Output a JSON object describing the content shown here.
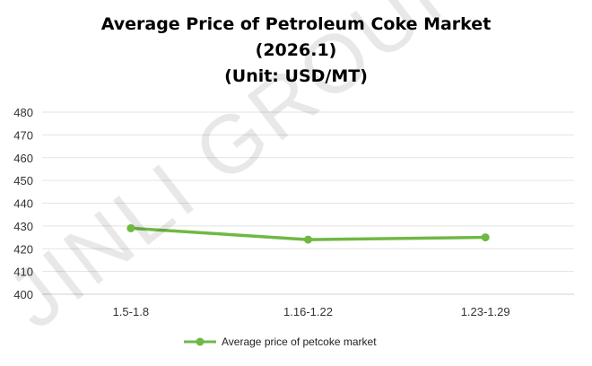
{
  "chart_data": {
    "type": "line",
    "title": [
      "Average Price of Petroleum Coke Market",
      "(2026.1)",
      "(Unit: USD/MT)"
    ],
    "categories": [
      "1.5-1.8",
      "1.16-1.22",
      "1.23-1.29"
    ],
    "series": [
      {
        "name": "Average price of petcoke market",
        "values": [
          429,
          424,
          425
        ],
        "color": "#70B844"
      }
    ],
    "ylim": [
      400,
      480
    ],
    "yticks": [
      400,
      410,
      420,
      430,
      440,
      450,
      460,
      470,
      480
    ],
    "grid": true,
    "legend": "bottom",
    "watermark": "JINLI GROUP"
  }
}
